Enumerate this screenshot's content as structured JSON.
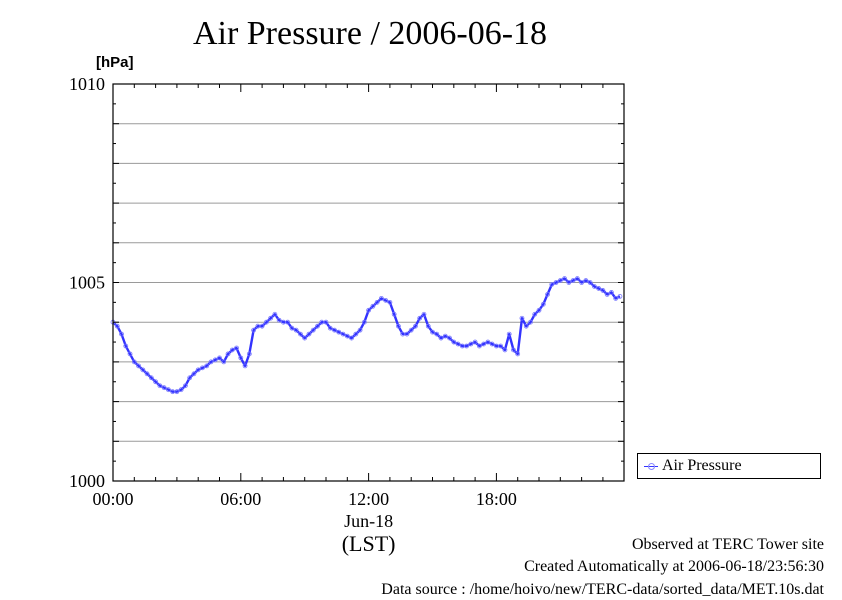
{
  "chart_data": {
    "type": "line",
    "title": "Air Pressure / 2006-06-18",
    "ylabel_unit": "[hPa]",
    "ylim": [
      1000,
      1010
    ],
    "y_major_ticks": [
      1000,
      1005,
      1010
    ],
    "x_range_hours": [
      0,
      23.99
    ],
    "x_ticks": [
      {
        "hour": 0,
        "label": "00:00"
      },
      {
        "hour": 6,
        "label": "06:00"
      },
      {
        "hour": 12,
        "label": "12:00"
      },
      {
        "hour": 18,
        "label": "18:00"
      }
    ],
    "date_label": "Jun-18",
    "timezone_label": "(LST)",
    "grid": "horizontal",
    "legend_position": "right",
    "series": [
      {
        "name": "Air Pressure",
        "color": "#3333ff",
        "x": [
          0,
          0.2,
          0.4,
          0.6,
          0.8,
          1.0,
          1.2,
          1.4,
          1.6,
          1.8,
          2.0,
          2.2,
          2.4,
          2.6,
          2.8,
          3.0,
          3.2,
          3.4,
          3.6,
          3.8,
          4.0,
          4.2,
          4.4,
          4.6,
          4.8,
          5.0,
          5.2,
          5.4,
          5.6,
          5.8,
          6.0,
          6.2,
          6.4,
          6.6,
          6.8,
          7.0,
          7.2,
          7.4,
          7.6,
          7.8,
          8.0,
          8.2,
          8.4,
          8.6,
          8.8,
          9.0,
          9.2,
          9.4,
          9.6,
          9.8,
          10.0,
          10.2,
          10.4,
          10.6,
          10.8,
          11.0,
          11.2,
          11.4,
          11.6,
          11.8,
          12.0,
          12.2,
          12.4,
          12.6,
          12.8,
          13.0,
          13.2,
          13.4,
          13.6,
          13.8,
          14.0,
          14.2,
          14.4,
          14.6,
          14.8,
          15.0,
          15.2,
          15.4,
          15.6,
          15.8,
          16.0,
          16.2,
          16.4,
          16.6,
          16.8,
          17.0,
          17.2,
          17.4,
          17.6,
          17.8,
          18.0,
          18.2,
          18.4,
          18.6,
          18.8,
          19.0,
          19.2,
          19.4,
          19.6,
          19.8,
          20.0,
          20.2,
          20.4,
          20.6,
          20.8,
          21.0,
          21.2,
          21.4,
          21.6,
          21.8,
          22.0,
          22.2,
          22.4,
          22.6,
          22.8,
          23.0,
          23.2,
          23.4,
          23.6,
          23.8
        ],
        "values": [
          1004.0,
          1003.9,
          1003.7,
          1003.4,
          1003.2,
          1003.0,
          1002.9,
          1002.8,
          1002.7,
          1002.6,
          1002.5,
          1002.4,
          1002.35,
          1002.3,
          1002.25,
          1002.25,
          1002.3,
          1002.4,
          1002.6,
          1002.7,
          1002.8,
          1002.85,
          1002.9,
          1003.0,
          1003.05,
          1003.1,
          1003.0,
          1003.2,
          1003.3,
          1003.35,
          1003.1,
          1002.9,
          1003.2,
          1003.8,
          1003.9,
          1003.9,
          1004.0,
          1004.1,
          1004.2,
          1004.05,
          1004.0,
          1004.0,
          1003.85,
          1003.8,
          1003.7,
          1003.6,
          1003.7,
          1003.8,
          1003.9,
          1004.0,
          1004.0,
          1003.85,
          1003.8,
          1003.75,
          1003.7,
          1003.65,
          1003.6,
          1003.7,
          1003.8,
          1004.0,
          1004.3,
          1004.4,
          1004.5,
          1004.6,
          1004.55,
          1004.5,
          1004.2,
          1003.9,
          1003.7,
          1003.7,
          1003.8,
          1003.9,
          1004.1,
          1004.2,
          1003.9,
          1003.75,
          1003.7,
          1003.6,
          1003.65,
          1003.6,
          1003.5,
          1003.45,
          1003.4,
          1003.4,
          1003.45,
          1003.5,
          1003.4,
          1003.45,
          1003.5,
          1003.45,
          1003.4,
          1003.4,
          1003.3,
          1003.7,
          1003.3,
          1003.2,
          1004.1,
          1003.9,
          1004.0,
          1004.2,
          1004.3,
          1004.45,
          1004.7,
          1004.95,
          1005.0,
          1005.05,
          1005.1,
          1005.0,
          1005.05,
          1005.1,
          1005.0,
          1005.05,
          1005.0,
          1004.9,
          1004.85,
          1004.8,
          1004.7,
          1004.75,
          1004.6,
          1004.65
        ]
      }
    ]
  },
  "footer": {
    "observed": "Observed at TERC Tower site",
    "created": "Created Automatically at 2006-06-18/23:56:30",
    "source": "Data source : /home/hoivo/new/TERC-data/sorted_data/MET.10s.dat"
  }
}
